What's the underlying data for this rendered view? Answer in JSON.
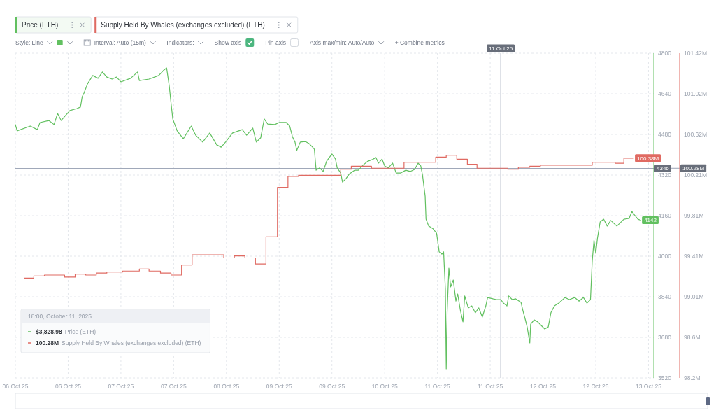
{
  "chart_data": {
    "type": "line",
    "xlim": [
      "2025-10-06T00:00",
      "2025-10-13T13:30"
    ],
    "xticks": [
      {
        "value": "2025-10-06T00:00",
        "label": "06 Oct 25"
      },
      {
        "value": "2025-10-06T15:00",
        "label": "06 Oct 25"
      },
      {
        "value": "2025-10-07T06:00",
        "label": "07 Oct 25"
      },
      {
        "value": "2025-10-07T21:00",
        "label": "07 Oct 25"
      },
      {
        "value": "2025-10-08T12:00",
        "label": "08 Oct 25"
      },
      {
        "value": "2025-10-09T03:00",
        "label": "09 Oct 25"
      },
      {
        "value": "2025-10-09T18:00",
        "label": "09 Oct 25"
      },
      {
        "value": "2025-10-10T09:00",
        "label": "10 Oct 25"
      },
      {
        "value": "2025-10-11T00:00",
        "label": "11 Oct 25"
      },
      {
        "value": "2025-10-11T15:00",
        "label": "11 Oct 25"
      },
      {
        "value": "2025-10-12T06:00",
        "label": "12 Oct 25"
      },
      {
        "value": "2025-10-12T21:00",
        "label": "12 Oct 25"
      },
      {
        "value": "2025-10-13T12:00",
        "label": "13 Oct 25"
      }
    ],
    "ylim": [
      3520,
      4800
    ],
    "yticks": [
      3520,
      3680,
      3840,
      4000,
      4160,
      4320,
      4480,
      4640,
      4800
    ],
    "y2lim": [
      98.2,
      101.42
    ],
    "y2ticks": [
      {
        "value": 98.2,
        "label": "98.2M"
      },
      {
        "value": 98.6025,
        "label": "98.6M"
      },
      {
        "value": 99.005,
        "label": "99.01M"
      },
      {
        "value": 99.4075,
        "label": "99.41M"
      },
      {
        "value": 99.81,
        "label": "99.81M"
      },
      {
        "value": 100.2125,
        "label": "100.21M"
      },
      {
        "value": 100.615,
        "label": "100.62M"
      },
      {
        "value": 101.0175,
        "label": "101.02M"
      },
      {
        "value": 101.42,
        "label": "101.42M"
      }
    ],
    "grid": true,
    "legend": "top left",
    "series": [
      {
        "name": "Price (ETH)",
        "color": "#62c060",
        "x": [
          "2025-10-06T00:00",
          "2025-10-06T00:30",
          "2025-10-06T04:15",
          "2025-10-06T06:15",
          "2025-10-06T07:00",
          "2025-10-06T09:30",
          "2025-10-06T11:00",
          "2025-10-06T12:00",
          "2025-10-06T13:00",
          "2025-10-06T15:30",
          "2025-10-06T17:30",
          "2025-10-06T18:30",
          "2025-10-06T19:00",
          "2025-10-06T19:30",
          "2025-10-06T20:30",
          "2025-10-06T22:00",
          "2025-10-06T23:30",
          "2025-10-07T00:45",
          "2025-10-07T02:00",
          "2025-10-07T03:30",
          "2025-10-07T04:45",
          "2025-10-07T06:00",
          "2025-10-07T08:45",
          "2025-10-07T10:45",
          "2025-10-07T11:15",
          "2025-10-07T14:00",
          "2025-10-07T16:45",
          "2025-10-07T18:15",
          "2025-10-07T19:00",
          "2025-10-07T19:45",
          "2025-10-07T20:15",
          "2025-10-07T20:45",
          "2025-10-07T22:00",
          "2025-10-07T23:45",
          "2025-10-08T02:00",
          "2025-10-08T03:15",
          "2025-10-08T05:15",
          "2025-10-08T07:15",
          "2025-10-08T09:15",
          "2025-10-08T10:30",
          "2025-10-08T11:45",
          "2025-10-08T13:45",
          "2025-10-08T16:30",
          "2025-10-08T17:45",
          "2025-10-08T19:30",
          "2025-10-08T20:30",
          "2025-10-08T21:45",
          "2025-10-08T22:45",
          "2025-10-08T23:45",
          "2025-10-09T01:45",
          "2025-10-09T03:00",
          "2025-10-09T05:00",
          "2025-10-09T06:00",
          "2025-10-09T06:45",
          "2025-10-09T07:30",
          "2025-10-09T08:00",
          "2025-10-09T09:00",
          "2025-10-09T10:30",
          "2025-10-09T11:30",
          "2025-10-09T12:30",
          "2025-10-09T13:00",
          "2025-10-09T13:30",
          "2025-10-09T14:30",
          "2025-10-09T15:30",
          "2025-10-09T16:30",
          "2025-10-09T18:00",
          "2025-10-09T19:00",
          "2025-10-09T19:30",
          "2025-10-09T20:30",
          "2025-10-09T21:00",
          "2025-10-09T22:00",
          "2025-10-09T23:00",
          "2025-10-10T00:30",
          "2025-10-10T01:30",
          "2025-10-10T03:00",
          "2025-10-10T04:15",
          "2025-10-10T05:30",
          "2025-10-10T06:30",
          "2025-10-10T07:15",
          "2025-10-10T08:15",
          "2025-10-10T09:00",
          "2025-10-10T10:00",
          "2025-10-10T11:15",
          "2025-10-10T12:15",
          "2025-10-10T13:30",
          "2025-10-10T15:00",
          "2025-10-10T16:15",
          "2025-10-10T17:30",
          "2025-10-10T18:30",
          "2025-10-10T19:15",
          "2025-10-10T19:45",
          "2025-10-10T20:30",
          "2025-10-10T20:45",
          "2025-10-10T21:30",
          "2025-10-10T22:45",
          "2025-10-10T23:45",
          "2025-10-11T00:30",
          "2025-10-11T01:15",
          "2025-10-11T01:45",
          "2025-10-11T02:15",
          "2025-10-11T02:30",
          "2025-10-11T02:45",
          "2025-10-11T03:15",
          "2025-10-11T03:45",
          "2025-10-11T04:30",
          "2025-10-11T05:15",
          "2025-10-11T05:45",
          "2025-10-11T06:30",
          "2025-10-11T07:15",
          "2025-10-11T07:45",
          "2025-10-11T08:45",
          "2025-10-11T09:45",
          "2025-10-11T10:45",
          "2025-10-11T11:45",
          "2025-10-11T12:45",
          "2025-10-11T13:45",
          "2025-10-11T14:15",
          "2025-10-11T15:45",
          "2025-10-11T16:45",
          "2025-10-11T18:00",
          "2025-10-11T18:45",
          "2025-10-11T19:45",
          "2025-10-11T20:15",
          "2025-10-11T21:15",
          "2025-10-11T22:15",
          "2025-10-11T23:45",
          "2025-10-12T00:15",
          "2025-10-12T01:00",
          "2025-10-12T01:30",
          "2025-10-12T02:15",
          "2025-10-12T02:30",
          "2025-10-12T03:30",
          "2025-10-12T04:30",
          "2025-10-12T05:30",
          "2025-10-12T06:30",
          "2025-10-12T07:30",
          "2025-10-12T08:15",
          "2025-10-12T09:15",
          "2025-10-12T10:30",
          "2025-10-12T12:15",
          "2025-10-12T13:30",
          "2025-10-12T15:00",
          "2025-10-12T16:15",
          "2025-10-12T17:30",
          "2025-10-12T18:30",
          "2025-10-12T19:30",
          "2025-10-12T20:00",
          "2025-10-12T20:30",
          "2025-10-12T21:00",
          "2025-10-12T21:30",
          "2025-10-12T22:15",
          "2025-10-12T23:15",
          "2025-10-13T00:15",
          "2025-10-13T01:15",
          "2025-10-13T03:00",
          "2025-10-13T04:00",
          "2025-10-13T05:00",
          "2025-10-13T06:30",
          "2025-10-13T07:15",
          "2025-10-13T08:00",
          "2025-10-13T09:00",
          "2025-10-13T09:45"
        ],
        "values": [
          4519,
          4494,
          4513,
          4499,
          4527,
          4535,
          4519,
          4563,
          4535,
          4574,
          4582,
          4588,
          4629,
          4643,
          4679,
          4712,
          4701,
          4726,
          4706,
          4698,
          4706,
          4687,
          4701,
          4726,
          4692,
          4698,
          4712,
          4734,
          4742,
          4670,
          4604,
          4541,
          4494,
          4463,
          4513,
          4477,
          4450,
          4486,
          4439,
          4430,
          4450,
          4486,
          4499,
          4477,
          4505,
          4450,
          4467,
          4541,
          4521,
          4519,
          4527,
          4527,
          4513,
          4472,
          4450,
          4417,
          4450,
          4452,
          4444,
          4430,
          4422,
          4339,
          4348,
          4334,
          4375,
          4403,
          4383,
          4348,
          4328,
          4292,
          4306,
          4325,
          4339,
          4339,
          4361,
          4375,
          4381,
          4389,
          4367,
          4383,
          4356,
          4348,
          4367,
          4328,
          4328,
          4339,
          4334,
          4342,
          4367,
          4356,
          4320,
          4237,
          4146,
          4119,
          4108,
          4091,
          4017,
          4008,
          4017,
          3870,
          3556,
          3777,
          3953,
          3879,
          3906,
          3823,
          3851,
          3788,
          3741,
          3843,
          3796,
          3804,
          3777,
          3796,
          3760,
          3804,
          3837,
          3832,
          3829,
          3829,
          3815,
          3804,
          3843,
          3829,
          3832,
          3818,
          3788,
          3749,
          3721,
          3658,
          3732,
          3749,
          3741,
          3727,
          3713,
          3721,
          3777,
          3804,
          3815,
          3837,
          3829,
          3837,
          3823,
          3837,
          3815,
          3829,
          3981,
          4063,
          4011,
          4072,
          4135,
          4146,
          4119,
          4141,
          4119,
          4132,
          4146,
          4149,
          4177,
          4163,
          4146,
          4142
        ],
        "value_labels": [
          null,
          null,
          null,
          null,
          null,
          null,
          null,
          null,
          null,
          null,
          null,
          null,
          null,
          null,
          null,
          null,
          null,
          null,
          null,
          null,
          null,
          null,
          null,
          null,
          null,
          null,
          null,
          null,
          null,
          null,
          null,
          null,
          null,
          null,
          null,
          null,
          null,
          null,
          null,
          null,
          null,
          null,
          null,
          null,
          null,
          null,
          null,
          null,
          null,
          null,
          null,
          null,
          null,
          null,
          null,
          null,
          null,
          null,
          null,
          null,
          null,
          null,
          null,
          null,
          null,
          null,
          null,
          null,
          null,
          null,
          null,
          null,
          null,
          null,
          null,
          null,
          null,
          null,
          null,
          null,
          null,
          null,
          null,
          null,
          null,
          null,
          null,
          null,
          null,
          null,
          null,
          null,
          null,
          null,
          null,
          null,
          null,
          null,
          null,
          null,
          null,
          null,
          null,
          null,
          null,
          null,
          null,
          null,
          null,
          null,
          null,
          null,
          null,
          null,
          null,
          null,
          null,
          null,
          null,
          null,
          null,
          null,
          null,
          null,
          null,
          null,
          null,
          null,
          null,
          null,
          null,
          null,
          null,
          null,
          null,
          null,
          null,
          null,
          null,
          null,
          null,
          null,
          null,
          null,
          null,
          null,
          null,
          null,
          null,
          null,
          null,
          null,
          null,
          null,
          null,
          null,
          null,
          null,
          null,
          null,
          null,
          "4142"
        ]
      },
      {
        "name": "Supply Held By Whales (exchanges excluded) (ETH)",
        "type": "step",
        "axis": "y2",
        "color": "#e06a62",
        "x": [
          "2025-10-06T02:30",
          "2025-10-06T05:15",
          "2025-10-06T08:15",
          "2025-10-06T14:00",
          "2025-10-06T17:00",
          "2025-10-06T20:00",
          "2025-10-06T23:00",
          "2025-10-07T02:00",
          "2025-10-07T06:30",
          "2025-10-07T11:15",
          "2025-10-07T14:00",
          "2025-10-07T17:15",
          "2025-10-07T20:15",
          "2025-10-07T23:15",
          "2025-10-08T02:15",
          "2025-10-08T11:15",
          "2025-10-08T14:15",
          "2025-10-08T17:15",
          "2025-10-08T20:15",
          "2025-10-08T23:15",
          "2025-10-09T02:30",
          "2025-10-09T05:30",
          "2025-10-09T08:30",
          "2025-10-09T20:30",
          "2025-10-09T23:30",
          "2025-10-10T05:15",
          "2025-10-10T14:30",
          "2025-10-10T23:30",
          "2025-10-11T02:30",
          "2025-10-11T05:30",
          "2025-10-11T08:30",
          "2025-10-11T11:15",
          "2025-10-11T20:00",
          "2025-10-11T23:00",
          "2025-10-12T02:15",
          "2025-10-12T05:15",
          "2025-10-12T20:00",
          "2025-10-13T02:30",
          "2025-10-13T05:00",
          "2025-10-13T07:45"
        ],
        "values": [
          99.19,
          99.21,
          99.22,
          99.2,
          99.23,
          99.22,
          99.24,
          99.25,
          99.26,
          99.28,
          99.26,
          99.24,
          99.22,
          99.32,
          99.42,
          99.39,
          99.41,
          99.39,
          99.33,
          99.6,
          100.09,
          100.2,
          100.21,
          100.27,
          100.3,
          100.28,
          100.34,
          100.39,
          100.41,
          100.37,
          100.32,
          100.28,
          100.27,
          100.29,
          100.3,
          100.31,
          100.34,
          100.33,
          100.38,
          100.38
        ],
        "value_labels": [
          null,
          null,
          null,
          null,
          null,
          null,
          null,
          null,
          null,
          null,
          null,
          null,
          null,
          null,
          null,
          null,
          null,
          null,
          null,
          null,
          null,
          null,
          null,
          null,
          null,
          null,
          null,
          null,
          null,
          null,
          null,
          null,
          null,
          null,
          null,
          null,
          null,
          null,
          null,
          "100.38M"
        ]
      }
    ],
    "ref_lines": [
      {
        "axis": "x",
        "value": "2025-10-11T18:00",
        "label": "11 Oct 25",
        "color": "#9aa3b5"
      },
      {
        "axis": "y",
        "value": 4346,
        "label": "4346",
        "color": "#9aa3b5"
      },
      {
        "axis": "y2",
        "value": 100.28,
        "label": "100.28M",
        "color": "#9aa3b5"
      }
    ],
    "annotations": [
      "Style: Line",
      "Interval: Auto (15m)",
      "Indicators:",
      "Show axis",
      "Pin axis",
      "Axis max/min: Auto/Auto",
      "+ Combine metrics",
      "18:00, October 11, 2025",
      "$3,828.98",
      "100.28M"
    ]
  }
}
